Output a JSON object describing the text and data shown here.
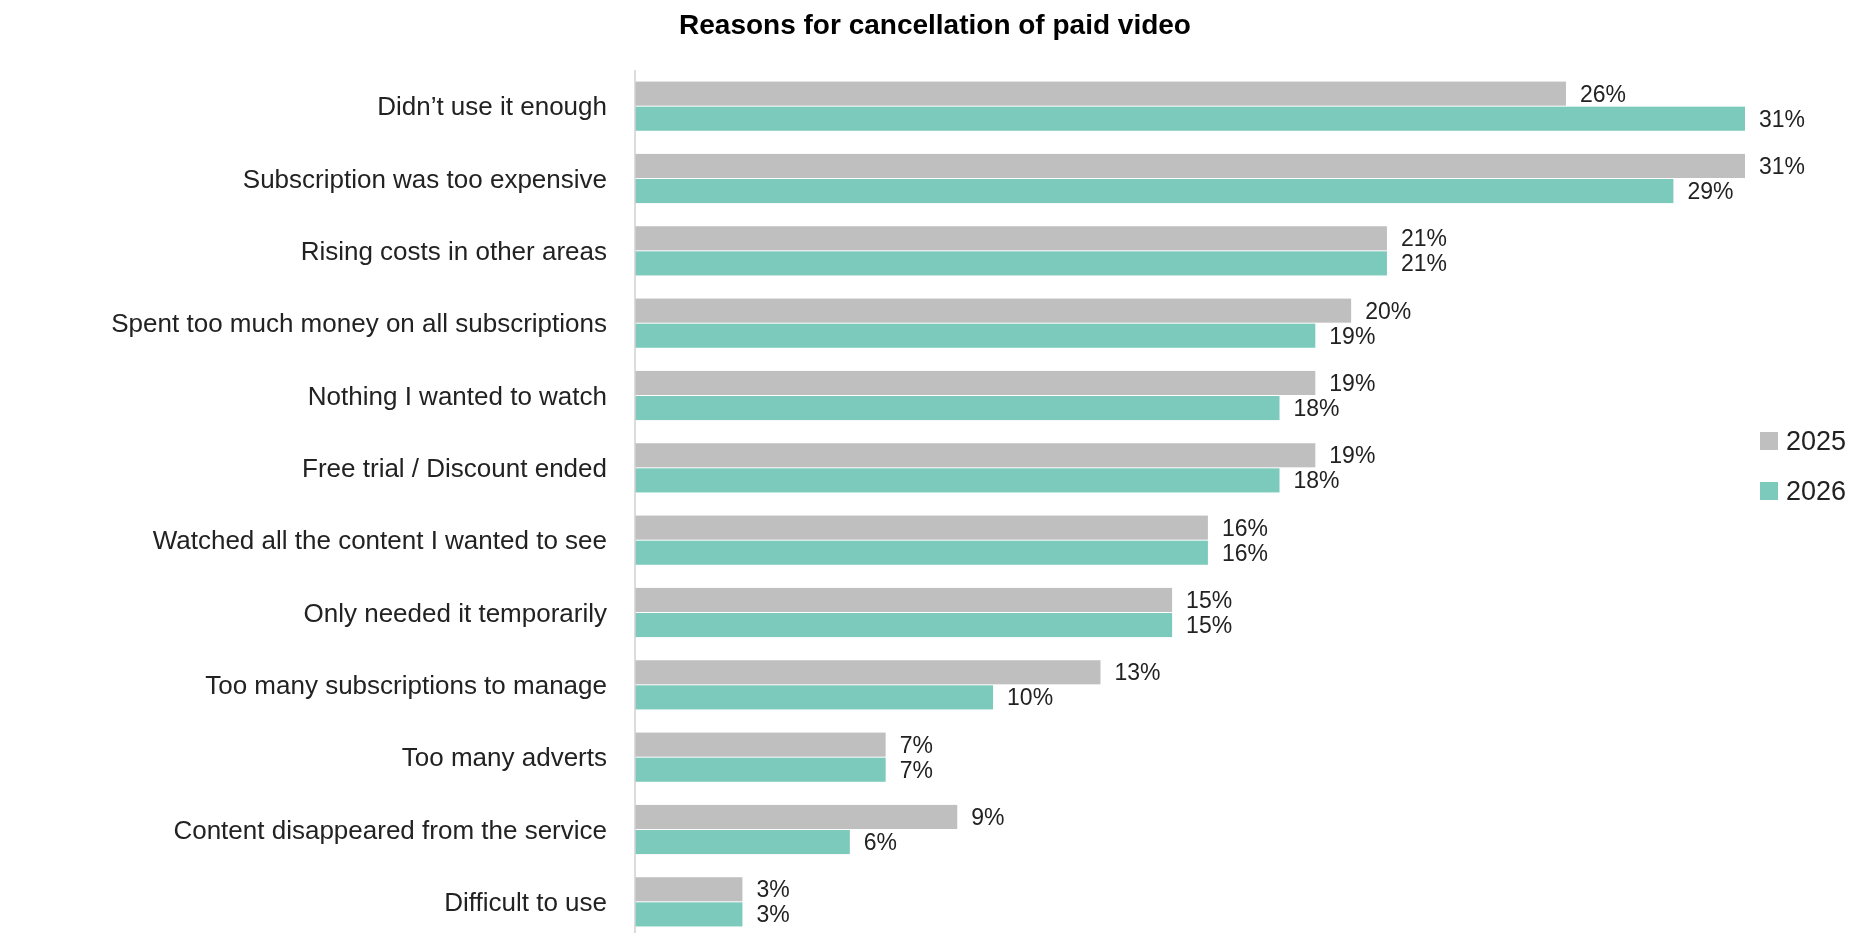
{
  "chart_data": {
    "type": "bar",
    "orientation": "horizontal",
    "title": "Reasons for cancellation of paid video",
    "categories": [
      "Didn’t use it enough",
      "Subscription was too expensive",
      "Rising costs in other areas",
      "Spent too much money on all subscriptions",
      "Nothing I wanted to watch",
      "Free trial / Discount ended",
      "Watched all the content I wanted to see",
      "Only needed it temporarily",
      "Too many subscriptions to manage",
      "Too many adverts",
      "Content disappeared from the service",
      "Difficult to use"
    ],
    "series": [
      {
        "name": "2025",
        "color": "#bfbfbf",
        "values": [
          26,
          31,
          21,
          20,
          19,
          19,
          16,
          15,
          13,
          7,
          9,
          3
        ],
        "value_labels": [
          "26%",
          "31%",
          "21%",
          "20%",
          "19%",
          "19%",
          "16%",
          "15%",
          "13%",
          "7%",
          "9%",
          "3%"
        ]
      },
      {
        "name": "2026",
        "color": "#7ccabb",
        "values": [
          31,
          29,
          21,
          19,
          18,
          18,
          16,
          15,
          10,
          7,
          6,
          3
        ],
        "value_labels": [
          "31%",
          "29%",
          "21%",
          "19%",
          "18%",
          "18%",
          "16%",
          "15%",
          "10%",
          "7%",
          "6%",
          "3%"
        ]
      }
    ],
    "legend": "right"
  }
}
